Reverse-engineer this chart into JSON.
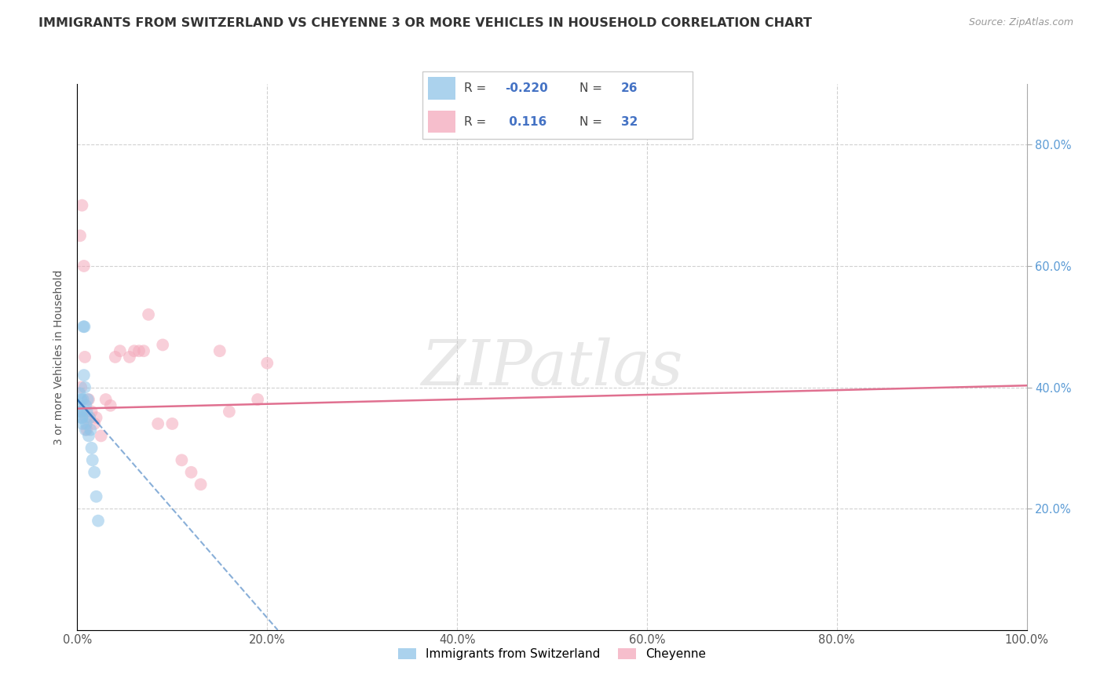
{
  "title": "IMMIGRANTS FROM SWITZERLAND VS CHEYENNE 3 OR MORE VEHICLES IN HOUSEHOLD CORRELATION CHART",
  "source": "Source: ZipAtlas.com",
  "ylabel": "3 or more Vehicles in Household",
  "watermark": "ZIPatlas",
  "legend1_R": "-0.220",
  "legend1_N": "26",
  "legend2_R": "0.116",
  "legend2_N": "32",
  "legend1_label": "Immigrants from Switzerland",
  "legend2_label": "Cheyenne",
  "blue_color": "#8fc4e8",
  "pink_color": "#f4a9bb",
  "blue_line_color": "#3a7abf",
  "pink_line_color": "#e07090",
  "blue_x": [
    0.3,
    0.4,
    0.5,
    0.6,
    0.7,
    0.8,
    0.9,
    1.0,
    1.1,
    1.3,
    1.4,
    1.5,
    1.6,
    1.8,
    2.0,
    2.2,
    0.2,
    0.25,
    0.35,
    0.45,
    0.55,
    0.65,
    0.75,
    0.85,
    0.95,
    1.2
  ],
  "blue_y": [
    36.0,
    38.0,
    35.0,
    38.0,
    42.0,
    40.0,
    37.0,
    36.0,
    38.0,
    35.0,
    33.0,
    30.0,
    28.0,
    26.0,
    22.0,
    18.0,
    37.0,
    39.0,
    36.0,
    35.0,
    34.0,
    50.0,
    50.0,
    33.0,
    34.0,
    32.0
  ],
  "pink_x": [
    0.3,
    0.5,
    0.7,
    0.9,
    1.2,
    1.5,
    2.0,
    3.0,
    4.0,
    5.5,
    6.5,
    7.5,
    9.0,
    11.0,
    13.0,
    16.0,
    20.0,
    0.4,
    0.6,
    0.8,
    1.0,
    1.8,
    2.5,
    3.5,
    4.5,
    6.0,
    7.0,
    8.5,
    10.0,
    12.0,
    15.0,
    19.0
  ],
  "pink_y": [
    65.0,
    70.0,
    60.0,
    35.0,
    38.0,
    36.0,
    35.0,
    38.0,
    45.0,
    45.0,
    46.0,
    52.0,
    47.0,
    28.0,
    24.0,
    36.0,
    44.0,
    40.0,
    36.0,
    45.0,
    33.0,
    34.0,
    32.0,
    37.0,
    46.0,
    46.0,
    46.0,
    34.0,
    34.0,
    26.0,
    46.0,
    38.0
  ],
  "xlim": [
    0,
    100
  ],
  "ylim": [
    0,
    90
  ],
  "ytick_positions": [
    20,
    40,
    60,
    80
  ],
  "ytick_labels": [
    "20.0%",
    "40.0%",
    "60.0%",
    "80.0%"
  ],
  "xtick_positions": [
    0,
    20,
    40,
    60,
    80,
    100
  ],
  "xtick_labels": [
    "0.0%",
    "20.0%",
    "40.0%",
    "60.0%",
    "80.0%",
    "100.0%"
  ],
  "background_color": "#ffffff",
  "grid_color": "#cccccc",
  "title_fontsize": 11.5,
  "axis_label_fontsize": 10,
  "tick_fontsize": 10.5,
  "watermark_fontsize": 58,
  "marker_size": 130,
  "marker_alpha": 0.55,
  "figsize": [
    14.06,
    8.92
  ],
  "dpi": 100,
  "blue_line_intercept": 38.0,
  "blue_line_slope": -1.8,
  "pink_line_intercept": 36.5,
  "pink_line_slope": 0.038
}
